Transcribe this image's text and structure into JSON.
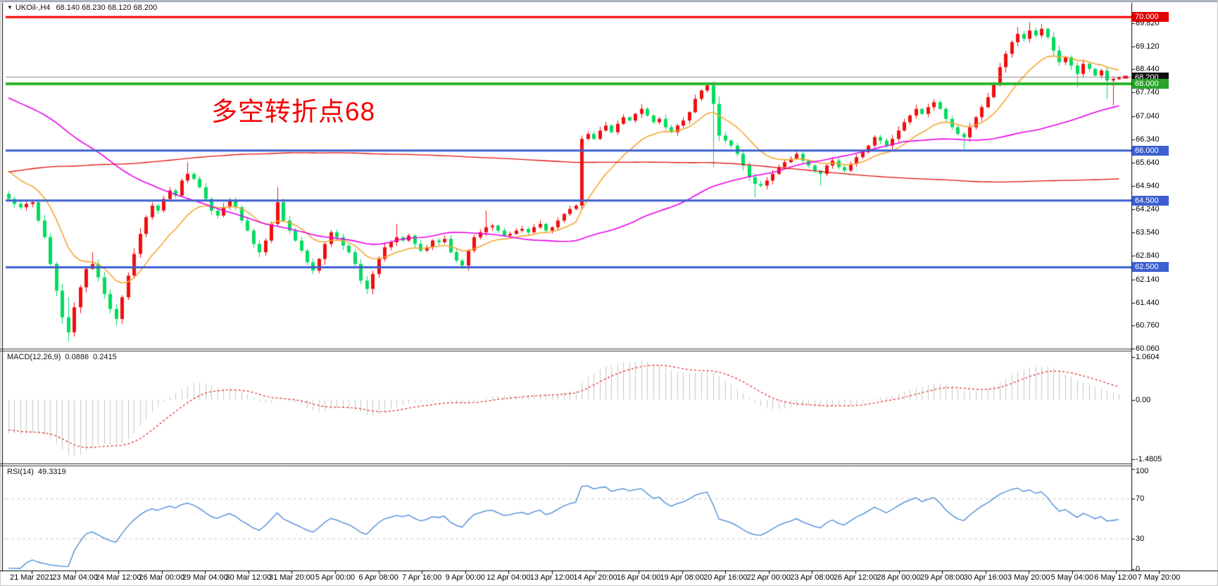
{
  "title": {
    "collapse_icon": "▼",
    "symbol_tf": "UKOil-,H4",
    "ohlc": "68.140 68.230 68.120 68.200"
  },
  "annotation": {
    "text": "多空转折点68",
    "color": "#f40000"
  },
  "price_axis": {
    "ticks": [
      "69.820",
      "69.120",
      "68.440",
      "67.740",
      "67.040",
      "66.340",
      "65.640",
      "64.940",
      "64.240",
      "63.540",
      "62.840",
      "62.140",
      "61.440",
      "60.760",
      "60.060"
    ],
    "top_price": 70.43,
    "bottom_price": 60.06
  },
  "levels": [
    {
      "label": "70.000",
      "value": 70.0,
      "line_color": "#f20000",
      "line_width": 3,
      "badge_bg": "#e00000"
    },
    {
      "label": "68.200",
      "value": 68.2,
      "line_color": "#8a8a8a",
      "line_width": 1,
      "badge_bg": "#101010"
    },
    {
      "label": "68.000",
      "value": 68.0,
      "line_color": "#2cb52c",
      "line_width": 4,
      "badge_bg": "#28a428"
    },
    {
      "label": "66.000",
      "value": 66.0,
      "line_color": "#3d5fd1",
      "line_width": 3,
      "badge_bg": "#3d5fd1"
    },
    {
      "label": "64.500",
      "value": 64.5,
      "line_color": "#3d5fd1",
      "line_width": 3,
      "badge_bg": "#3d5fd1"
    },
    {
      "label": "62.500",
      "value": 62.5,
      "line_color": "#3d5fd1",
      "line_width": 3,
      "badge_bg": "#3d5fd1"
    }
  ],
  "chart_data": {
    "type": "candlestick",
    "symbol": "UKOil-",
    "timeframe": "H4",
    "title": "UKOil-,H4 68.140 68.230 68.120 68.200",
    "last_bar": {
      "open": 68.14,
      "high": 68.23,
      "low": 68.12,
      "close": 68.2
    },
    "open_rule": "previous_close",
    "first_open": 64.7,
    "closes": [
      64.55,
      64.4,
      64.3,
      64.4,
      64.45,
      63.9,
      63.4,
      62.6,
      61.8,
      61.0,
      60.55,
      61.3,
      61.9,
      62.45,
      62.6,
      62.2,
      61.7,
      61.25,
      60.95,
      61.6,
      62.25,
      62.9,
      63.5,
      64.0,
      64.35,
      64.2,
      64.55,
      64.8,
      64.65,
      65.1,
      65.3,
      65.15,
      64.9,
      64.55,
      64.2,
      64.05,
      64.3,
      64.5,
      64.3,
      63.9,
      63.6,
      63.2,
      62.95,
      63.3,
      63.8,
      64.45,
      63.9,
      63.6,
      63.3,
      63.0,
      62.65,
      62.4,
      62.75,
      63.2,
      63.55,
      63.4,
      63.15,
      62.95,
      62.6,
      62.1,
      61.85,
      62.3,
      62.75,
      63.1,
      63.25,
      63.4,
      63.3,
      63.45,
      63.2,
      63.0,
      63.1,
      63.3,
      63.25,
      63.35,
      62.95,
      62.7,
      62.55,
      63.0,
      63.4,
      63.55,
      63.7,
      63.75,
      63.6,
      63.45,
      63.5,
      63.6,
      63.65,
      63.55,
      63.7,
      63.8,
      63.6,
      63.7,
      63.9,
      64.1,
      64.25,
      64.35,
      66.35,
      66.5,
      66.35,
      66.6,
      66.75,
      66.55,
      66.8,
      67.0,
      66.9,
      67.1,
      67.25,
      67.05,
      66.85,
      66.95,
      66.7,
      66.55,
      66.75,
      66.9,
      67.15,
      67.55,
      67.8,
      67.95,
      67.4,
      66.45,
      66.3,
      66.15,
      65.9,
      65.55,
      65.2,
      65.0,
      64.95,
      65.1,
      65.3,
      65.5,
      65.65,
      65.75,
      65.9,
      65.7,
      65.55,
      65.4,
      65.3,
      65.55,
      65.7,
      65.5,
      65.4,
      65.6,
      65.8,
      65.95,
      66.15,
      66.4,
      66.3,
      66.15,
      66.35,
      66.6,
      66.85,
      67.05,
      67.25,
      67.1,
      67.3,
      67.45,
      67.25,
      66.95,
      66.7,
      66.5,
      66.4,
      66.7,
      67.0,
      67.3,
      67.6,
      68.0,
      68.5,
      68.9,
      69.25,
      69.5,
      69.35,
      69.6,
      69.45,
      69.65,
      69.4,
      69.0,
      68.65,
      68.8,
      68.55,
      68.3,
      68.6,
      68.45,
      68.25,
      68.4,
      68.1,
      68.15,
      68.2
    ],
    "wick_overrides": {
      "10": {
        "l": 60.28,
        "h": 61.6
      },
      "14": {
        "h": 62.95
      },
      "18": {
        "l": 60.75,
        "h": 61.4
      },
      "30": {
        "h": 65.65
      },
      "42": {
        "l": 62.8
      },
      "45": {
        "h": 64.9
      },
      "51": {
        "l": 62.3
      },
      "60": {
        "l": 61.7
      },
      "65": {
        "h": 63.8
      },
      "76": {
        "l": 62.45
      },
      "80": {
        "h": 64.2
      },
      "96": {
        "h": 66.45,
        "l": 64.2
      },
      "106": {
        "h": 67.4
      },
      "117": {
        "h": 68.0
      },
      "118": {
        "l": 65.5
      },
      "125": {
        "l": 64.6
      },
      "136": {
        "l": 64.95
      },
      "160": {
        "l": 66.05
      },
      "169": {
        "h": 69.7
      },
      "171": {
        "h": 69.85
      },
      "173": {
        "h": 69.8
      },
      "179": {
        "l": 67.9
      },
      "184": {
        "l": 67.55
      },
      "185": {
        "l": 67.35
      }
    },
    "candle_colors": {
      "bull_up": "#f10f0f",
      "bear_down": "#00dc5e"
    },
    "moving_averages": [
      {
        "name": "fast-ma",
        "type": "ema",
        "period": 13,
        "color": "#f5a733",
        "width": 1.6
      },
      {
        "name": "mid-ma",
        "type": "sma",
        "period": 55,
        "color": "#ea00ea",
        "width": 1.6
      },
      {
        "name": "slow-ma",
        "type": "sma",
        "period": 200,
        "color": "#e41010",
        "width": 1.3
      }
    ],
    "prehistory_segments": [
      [
        58.5,
        69.0,
        145
      ],
      [
        69.0,
        68.4,
        40
      ],
      [
        68.4,
        64.6,
        25
      ]
    ],
    "horizontal_levels": [
      70.0,
      68.0,
      66.0,
      64.5,
      62.5
    ],
    "current_price": 68.2,
    "macd": {
      "label": "MACD(12,26,9)",
      "main_value": "0.0886",
      "signal_value": "0.2415",
      "fast": 12,
      "slow": 26,
      "signal": 9,
      "axis_ticks": [
        {
          "text": "1.0604",
          "value": 1.0604
        },
        {
          "text": "0.00",
          "value": 0
        },
        {
          "text": "-1.4805",
          "value": -1.4805
        }
      ],
      "histogram_color": "#c6c6c6",
      "signal_color": "#e02020"
    },
    "rsi": {
      "label": "RSI(14)",
      "value_text": "49.3319",
      "period": 14,
      "line_color": "#4285d7",
      "level_lines": [
        70,
        30
      ],
      "axis_ticks": [
        {
          "text": "100",
          "value": 100
        },
        {
          "text": "70",
          "value": 70
        },
        {
          "text": "30",
          "value": 30
        },
        {
          "text": "0",
          "value": 0
        }
      ]
    },
    "time_labels": [
      "21 Mar 2021",
      "23 Mar 04:00",
      "24 Mar 12:00",
      "26 Mar 00:00",
      "29 Mar 04:00",
      "30 Mar 12:00",
      "31 Mar 20:00",
      "5 Apr 00:00",
      "6 Apr 08:00",
      "7 Apr 16:00",
      "9 Apr 00:00",
      "12 Apr 04:00",
      "13 Apr 12:00",
      "14 Apr 20:00",
      "16 Apr 04:00",
      "19 Apr 08:00",
      "20 Apr 16:00",
      "22 Apr 00:00",
      "23 Apr 08:00",
      "26 Apr 12:00",
      "28 Apr 00:00",
      "29 Apr 08:00",
      "30 Apr 16:00",
      "3 May 20:00",
      "5 May 04:00",
      "6 May 12:00",
      "7 May 20:00"
    ]
  }
}
